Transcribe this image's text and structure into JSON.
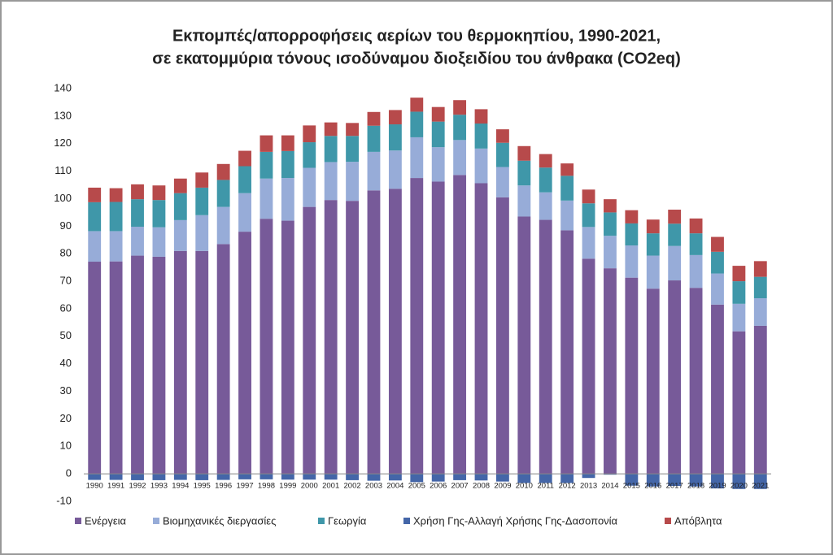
{
  "chart_data": {
    "type": "bar",
    "stacked": true,
    "title": "Εκπομπές/απορροφήσεις αερίων του θερμοκηπίου, 1990-2021,",
    "subtitle": "σε εκατομμύρια τόνους ισοδύναμου διοξειδίου του άνθρακα (CO2eq)",
    "categories": [
      "1990",
      "1991",
      "1992",
      "1993",
      "1994",
      "1995",
      "1996",
      "1997",
      "1998",
      "1999",
      "2000",
      "2001",
      "2002",
      "2003",
      "2004",
      "2005",
      "2006",
      "2007",
      "2008",
      "2009",
      "2010",
      "2011",
      "2012",
      "2013",
      "2014",
      "2015",
      "2016",
      "2017",
      "2018",
      "2019",
      "2020",
      "2021"
    ],
    "series": [
      {
        "name": "Ενέργεια",
        "color": "#775a99",
        "values": [
          77.1,
          77.2,
          79.3,
          78.9,
          81,
          81,
          83.5,
          88,
          92.7,
          92,
          97,
          99.5,
          99.2,
          103,
          103.6,
          107.5,
          106.2,
          108.6,
          105.6,
          100.5,
          93.5,
          92.3,
          88.5,
          78.2,
          74.7,
          71.3,
          67.3,
          70.3,
          67.6,
          61.5,
          51.8,
          53.8
        ]
      },
      {
        "name": "Βιομηχανικές διεργασίες",
        "color": "#97acd8",
        "values": [
          11.1,
          11,
          10.5,
          10.7,
          11.2,
          13,
          13.5,
          14,
          14.6,
          15.5,
          14.2,
          13.8,
          14.2,
          14,
          13.9,
          14.8,
          12.5,
          12.7,
          12.6,
          11,
          11.3,
          10,
          10.8,
          11.5,
          11.8,
          11.7,
          12,
          12.5,
          11.9,
          11.3,
          10,
          10
        ]
      },
      {
        "name": "Γεωργία",
        "color": "#3f97a9",
        "values": [
          10.5,
          10.6,
          10,
          9.9,
          9.8,
          10,
          9.8,
          9.8,
          9.7,
          9.8,
          9.3,
          9.5,
          9.4,
          9.5,
          9.5,
          9.3,
          9.3,
          9.2,
          9.1,
          8.8,
          9,
          9,
          9,
          8.6,
          8.5,
          8,
          8.1,
          8.1,
          7.9,
          7.9,
          8.2,
          7.8
        ]
      },
      {
        "name": "Χρήση Γης-Αλλαγή Χρήσης Γης-Δασοπονία",
        "color": "#4466a8",
        "values": [
          -2.2,
          -2.2,
          -2.3,
          -2.3,
          -2.2,
          -2.3,
          -2.2,
          -2,
          -2,
          -2.1,
          -2.1,
          -2.1,
          -2.3,
          -2.5,
          -2.4,
          -3,
          -2.8,
          -2.3,
          -2.4,
          -2.8,
          -3.3,
          -3.3,
          -3.3,
          -1.5,
          -0.3,
          -4.3,
          -4.6,
          -4.4,
          -4.6,
          -5.3,
          -5.5,
          -5.5
        ]
      },
      {
        "name": "Απόβλητα",
        "color": "#b74a4b",
        "values": [
          5.3,
          5,
          5.4,
          5.3,
          5.3,
          5.5,
          5.8,
          5.6,
          6,
          5.7,
          6.1,
          4.9,
          4.7,
          5,
          5.2,
          5.1,
          5.3,
          5.3,
          5.2,
          4.9,
          5.3,
          4.9,
          4.5,
          5,
          4.8,
          4.8,
          5,
          5.1,
          5.4,
          5.4,
          5.6,
          5.7
        ]
      }
    ],
    "ylim": [
      -10,
      140
    ],
    "yticks": [
      -10,
      0,
      10,
      20,
      30,
      40,
      50,
      60,
      70,
      80,
      90,
      100,
      110,
      120,
      130,
      140
    ],
    "grid": false,
    "legend": "bottom"
  }
}
